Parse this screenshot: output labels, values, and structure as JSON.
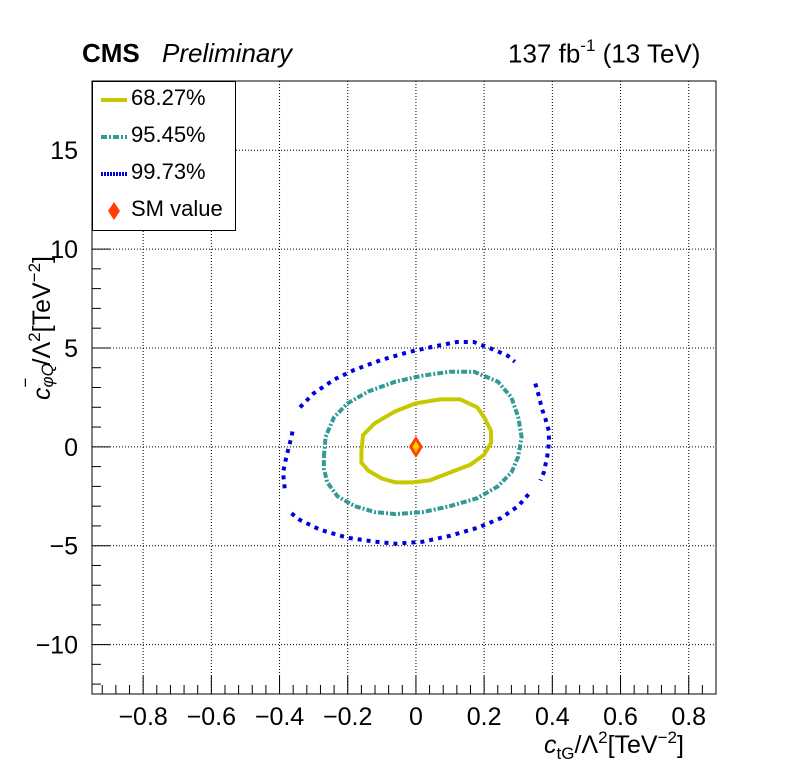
{
  "header": {
    "experiment": "CMS",
    "status": "Preliminary",
    "lumi_text": "137 fb",
    "lumi_sup": "-1",
    "energy_text": " (13 TeV)"
  },
  "chart_data": {
    "type": "contour",
    "xlabel": {
      "main": "c",
      "sub": "tG",
      "rest": "/Λ",
      "sq": "2",
      "unit": "[TeV",
      "unit_sup": "−2",
      "close": "]"
    },
    "ylabel": {
      "main": "c",
      "sup_minus": "−",
      "sub": "φQ",
      "rest": "/Λ",
      "sq": "2",
      "unit": "[TeV",
      "unit_sup": "−2",
      "close": "]"
    },
    "xlim": [
      -0.95,
      0.88
    ],
    "ylim": [
      -12.5,
      18.5
    ],
    "x_ticks": [
      -0.8,
      -0.6,
      -0.4,
      -0.2,
      0,
      0.2,
      0.4,
      0.6,
      0.8
    ],
    "x_tick_labels": [
      "−0.8",
      "−0.6",
      "−0.4",
      "−0.2",
      "0",
      "0.2",
      "0.4",
      "0.6",
      "0.8"
    ],
    "y_ticks": [
      -10,
      -5,
      0,
      5,
      10,
      15
    ],
    "y_tick_labels": [
      "−10",
      "−5",
      "0",
      "5",
      "10",
      "15"
    ],
    "grid": true,
    "legend_position": "top-left",
    "series": [
      {
        "name": "68.27%",
        "color": "#c8c800",
        "style": "solid",
        "points": [
          [
            -0.16,
            -0.2
          ],
          [
            -0.155,
            0.6
          ],
          [
            -0.12,
            1.2
          ],
          [
            -0.06,
            1.8
          ],
          [
            0.0,
            2.2
          ],
          [
            0.07,
            2.4
          ],
          [
            0.13,
            2.4
          ],
          [
            0.18,
            2.0
          ],
          [
            0.2,
            1.5
          ],
          [
            0.22,
            0.8
          ],
          [
            0.22,
            0.2
          ],
          [
            0.2,
            -0.4
          ],
          [
            0.16,
            -0.9
          ],
          [
            0.1,
            -1.3
          ],
          [
            0.04,
            -1.7
          ],
          [
            -0.01,
            -1.8
          ],
          [
            -0.06,
            -1.8
          ],
          [
            -0.1,
            -1.6
          ],
          [
            -0.14,
            -1.2
          ],
          [
            -0.16,
            -0.8
          ],
          [
            -0.16,
            -0.2
          ]
        ]
      },
      {
        "name": "95.45%",
        "color": "#339999",
        "style": "dash-dot",
        "points": [
          [
            -0.27,
            -0.5
          ],
          [
            -0.265,
            0.5
          ],
          [
            -0.24,
            1.5
          ],
          [
            -0.2,
            2.2
          ],
          [
            -0.14,
            2.8
          ],
          [
            -0.06,
            3.3
          ],
          [
            0.02,
            3.6
          ],
          [
            0.1,
            3.8
          ],
          [
            0.17,
            3.8
          ],
          [
            0.24,
            3.3
          ],
          [
            0.28,
            2.5
          ],
          [
            0.3,
            1.5
          ],
          [
            0.31,
            0.5
          ],
          [
            0.3,
            -0.5
          ],
          [
            0.28,
            -1.3
          ],
          [
            0.24,
            -2.0
          ],
          [
            0.18,
            -2.6
          ],
          [
            0.1,
            -3.0
          ],
          [
            0.02,
            -3.3
          ],
          [
            -0.06,
            -3.4
          ],
          [
            -0.12,
            -3.3
          ],
          [
            -0.18,
            -3.0
          ],
          [
            -0.23,
            -2.5
          ],
          [
            -0.26,
            -1.8
          ],
          [
            -0.27,
            -1.1
          ],
          [
            -0.27,
            -0.5
          ]
        ]
      },
      {
        "name": "99.73%",
        "color": "#0000dd",
        "style": "dotted",
        "segments": [
          [
            [
              -0.385,
              -2.1
            ],
            [
              -0.39,
              -1.3
            ],
            [
              -0.38,
              -0.5
            ],
            [
              -0.365,
              0.5
            ],
            [
              -0.36,
              1.0
            ]
          ],
          [
            [
              -0.34,
              2.0
            ],
            [
              -0.3,
              2.7
            ],
            [
              -0.24,
              3.4
            ],
            [
              -0.18,
              3.9
            ],
            [
              -0.1,
              4.4
            ],
            [
              -0.02,
              4.8
            ],
            [
              0.06,
              5.1
            ],
            [
              0.12,
              5.3
            ],
            [
              0.17,
              5.3
            ],
            [
              0.23,
              4.9
            ],
            [
              0.27,
              4.6
            ],
            [
              0.29,
              4.3
            ]
          ],
          [
            [
              0.35,
              3.2
            ],
            [
              0.36,
              2.6
            ],
            [
              0.37,
              1.9
            ],
            [
              0.38,
              1.4
            ],
            [
              0.39,
              0.8
            ],
            [
              0.39,
              0.2
            ],
            [
              0.385,
              -0.5
            ],
            [
              0.375,
              -1.3
            ],
            [
              0.365,
              -1.7
            ]
          ],
          [
            [
              0.33,
              -2.4
            ],
            [
              0.3,
              -3.0
            ],
            [
              0.25,
              -3.6
            ],
            [
              0.18,
              -4.1
            ],
            [
              0.1,
              -4.5
            ],
            [
              0.02,
              -4.8
            ],
            [
              -0.06,
              -4.9
            ],
            [
              -0.12,
              -4.8
            ],
            [
              -0.2,
              -4.6
            ],
            [
              -0.28,
              -4.2
            ],
            [
              -0.34,
              -3.7
            ],
            [
              -0.37,
              -3.3
            ]
          ]
        ]
      }
    ],
    "sm_point": {
      "name": "SM value",
      "x": 0,
      "y": 0,
      "color": "#ff4000",
      "inner_color": "#ffcc00"
    }
  }
}
